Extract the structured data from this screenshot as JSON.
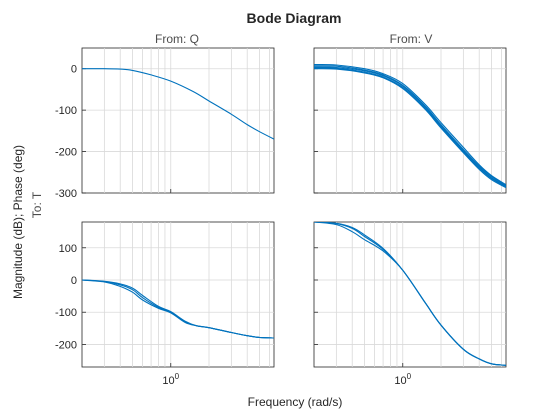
{
  "chart_data": {
    "type": "line",
    "title": "Bode Diagram",
    "xlabel": "Frequency (rad/s)",
    "ylabel": "Magnitude (dB); Phase (deg)",
    "row_label": "To: T",
    "column_labels": [
      "From: Q",
      "From: V"
    ],
    "x_scale": "log",
    "xlim": [
      0.2,
      6.5
    ],
    "x_ticks": [
      {
        "value": 1,
        "base": "10",
        "exponent": "0"
      }
    ],
    "grid": true,
    "color": "#0072bd",
    "panels": [
      {
        "row": "magnitude",
        "column": "From: Q",
        "ylim": [
          -300,
          50
        ],
        "yticks": [
          0,
          -100,
          -200,
          -300
        ],
        "series": [
          {
            "x": [
              0.2,
              0.3,
              0.4,
              0.5,
              0.7,
              1.0,
              1.5,
              2.0,
              3.0,
              4.0,
              5.0,
              6.5
            ],
            "y": [
              0,
              0,
              -1,
              -4,
              -15,
              -30,
              -55,
              -78,
              -110,
              -135,
              -152,
              -170
            ]
          }
        ]
      },
      {
        "row": "magnitude",
        "column": "From: V",
        "ylim": [
          -300,
          50
        ],
        "yticks": [
          0,
          -100,
          -200,
          -300
        ],
        "series": [
          {
            "x": [
              0.2,
              0.3,
              0.5,
              0.7,
              1.0,
              1.5,
              2.0,
              3.0,
              4.0,
              5.0,
              6.5
            ],
            "y": [
              2,
              1,
              -8,
              -20,
              -45,
              -95,
              -140,
              -200,
              -240,
              -265,
              -285
            ]
          },
          {
            "x": [
              0.2,
              0.3,
              0.5,
              0.7,
              1.0,
              1.5,
              2.0,
              3.0,
              4.0,
              5.0,
              6.5
            ],
            "y": [
              7,
              6,
              -3,
              -15,
              -40,
              -90,
              -135,
              -195,
              -235,
              -260,
              -282
            ]
          },
          {
            "x": [
              0.2,
              0.3,
              0.5,
              0.7,
              1.0,
              1.5,
              2.0,
              3.0,
              4.0,
              5.0,
              6.5
            ],
            "y": [
              10,
              9,
              0,
              -12,
              -36,
              -86,
              -130,
              -190,
              -232,
              -258,
              -280
            ]
          },
          {
            "x": [
              0.2,
              0.3,
              0.5,
              0.7,
              1.0,
              1.5,
              2.0,
              3.0,
              4.0,
              5.0,
              6.5
            ],
            "y": [
              4,
              3,
              -5,
              -17,
              -42,
              -92,
              -138,
              -198,
              -238,
              -263,
              -284
            ]
          },
          {
            "x": [
              0.2,
              0.3,
              0.5,
              0.7,
              1.0,
              1.5,
              2.0,
              3.0,
              4.0,
              5.0,
              6.5
            ],
            "y": [
              0,
              -1,
              -10,
              -22,
              -48,
              -98,
              -143,
              -203,
              -243,
              -268,
              -287
            ]
          }
        ]
      },
      {
        "row": "phase",
        "column": "From: Q",
        "ylim": [
          -270,
          180
        ],
        "yticks": [
          100,
          0,
          -100,
          -200
        ],
        "series": [
          {
            "x": [
              0.2,
              0.3,
              0.4,
              0.5,
              0.6,
              0.8,
              1.0,
              1.3,
              1.6,
              2.0,
              3.0,
              4.0,
              5.0,
              6.5
            ],
            "y": [
              0,
              -5,
              -15,
              -30,
              -55,
              -85,
              -100,
              -130,
              -142,
              -148,
              -163,
              -173,
              -178,
              -180
            ]
          },
          {
            "x": [
              0.2,
              0.3,
              0.4,
              0.5,
              0.6,
              0.8,
              1.0,
              1.3,
              1.6,
              2.0,
              3.0,
              4.0,
              5.0,
              6.5
            ],
            "y": [
              0,
              -6,
              -20,
              -38,
              -62,
              -88,
              -102,
              -132,
              -142,
              -148,
              -163,
              -173,
              -178,
              -180
            ]
          },
          {
            "x": [
              0.2,
              0.3,
              0.4,
              0.5,
              0.6,
              0.8,
              1.0,
              1.3,
              1.6,
              2.0,
              3.0,
              4.0,
              5.0,
              6.5
            ],
            "y": [
              0,
              -4,
              -12,
              -25,
              -48,
              -82,
              -98,
              -128,
              -142,
              -148,
              -163,
              -173,
              -178,
              -180
            ]
          }
        ]
      },
      {
        "row": "phase",
        "column": "From: V",
        "ylim": [
          -270,
          180
        ],
        "yticks": [
          100,
          0,
          -100,
          -200
        ],
        "series": [
          {
            "x": [
              0.2,
              0.3,
              0.4,
              0.5,
              0.7,
              1.0,
              1.5,
              2.0,
              3.0,
              4.0,
              5.0,
              6.5
            ],
            "y": [
              180,
              175,
              160,
              135,
              95,
              30,
              -70,
              -140,
              -215,
              -245,
              -260,
              -265
            ]
          },
          {
            "x": [
              0.2,
              0.3,
              0.4,
              0.5,
              0.7,
              1.0,
              1.5,
              2.0,
              3.0,
              4.0,
              5.0,
              6.5
            ],
            "y": [
              180,
              172,
              150,
              125,
              90,
              30,
              -70,
              -140,
              -215,
              -245,
              -260,
              -265
            ]
          },
          {
            "x": [
              0.2,
              0.3,
              0.4,
              0.5,
              0.7,
              1.0,
              1.5,
              2.0,
              3.0,
              4.0,
              5.0,
              6.5
            ],
            "y": [
              180,
              176,
              163,
              140,
              98,
              30,
              -70,
              -140,
              -215,
              -245,
              -260,
              -265
            ]
          }
        ]
      }
    ]
  }
}
